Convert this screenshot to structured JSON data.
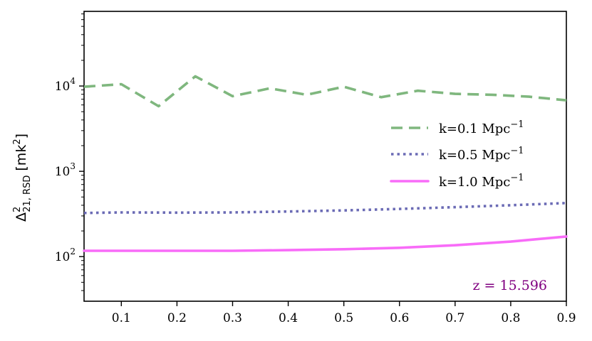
{
  "chart_data": {
    "type": "line",
    "title": "",
    "xlabel": "",
    "ylabel": {
      "base": "Δ",
      "sup": "2",
      "sub": "21, RSD",
      "unit_open": " [mk",
      "unit_sup": "2",
      "unit_close": "]"
    },
    "xlim": [
      0.033,
      0.9
    ],
    "ylim": [
      30,
      75000
    ],
    "yscale": "log",
    "xticks": [
      0.1,
      0.2,
      0.3,
      0.4,
      0.5,
      0.6,
      0.7,
      0.8,
      0.9
    ],
    "xtick_labels": [
      "0.1",
      "0.2",
      "0.3",
      "0.4",
      "0.5",
      "0.6",
      "0.7",
      "0.8",
      "0.9"
    ],
    "yticks": [
      {
        "value": 100,
        "base": "10",
        "exp": "2"
      },
      {
        "value": 1000,
        "base": "10",
        "exp": "3"
      },
      {
        "value": 10000,
        "base": "10",
        "exp": "4"
      }
    ],
    "grid": false,
    "legend_position": "center-right",
    "series": [
      {
        "legend_main": "k=0.1 Mpc",
        "legend_sup": "−1",
        "color": "#7fb77e",
        "style": "dashed",
        "x": [
          0.033,
          0.1,
          0.167,
          0.233,
          0.3,
          0.367,
          0.433,
          0.5,
          0.567,
          0.633,
          0.7,
          0.767,
          0.833,
          0.9
        ],
        "y": [
          9800,
          10500,
          5800,
          13000,
          7600,
          9400,
          7900,
          9800,
          7400,
          8800,
          8100,
          7900,
          7500,
          6800
        ]
      },
      {
        "legend_main": "k=0.5 Mpc",
        "legend_sup": "−1",
        "color": "#6b6bb5",
        "style": "dotted",
        "x": [
          0.033,
          0.1,
          0.2,
          0.3,
          0.4,
          0.5,
          0.6,
          0.7,
          0.8,
          0.9
        ],
        "y": [
          325,
          330,
          328,
          330,
          338,
          348,
          362,
          380,
          400,
          425
        ]
      },
      {
        "legend_main": "k=1.0 Mpc",
        "legend_sup": "−1",
        "color": "#f86cf8",
        "style": "solid",
        "x": [
          0.033,
          0.1,
          0.2,
          0.3,
          0.4,
          0.5,
          0.6,
          0.7,
          0.8,
          0.9
        ],
        "y": [
          117,
          117,
          117,
          117,
          119,
          122,
          127,
          136,
          150,
          172
        ]
      }
    ],
    "annotations": [
      {
        "text": "z = 15.596",
        "color": "#800080",
        "position": "bottom-right"
      }
    ]
  }
}
